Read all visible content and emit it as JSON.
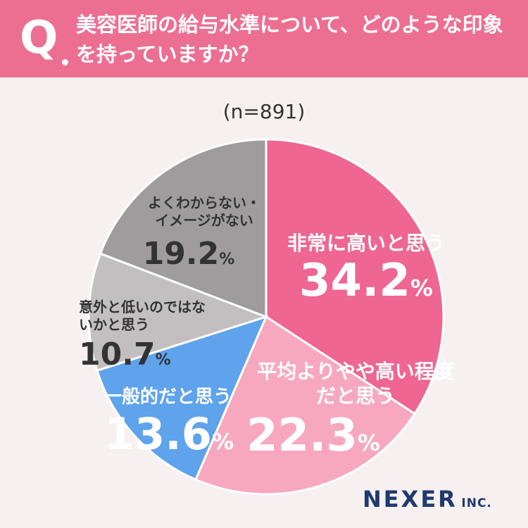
{
  "header": {
    "q_label": "Q",
    "question": "美容医師の給与水準について、どのような印象を持っていますか？"
  },
  "sample_label": "(n=891)",
  "brand": {
    "name": "NEXER",
    "suffix": "INC."
  },
  "chart_data": {
    "type": "pie",
    "title": "美容医師の給与水準について、どのような印象を持っていますか？",
    "n": 891,
    "unit": "%",
    "slices": [
      {
        "label": "非常に高いと思う",
        "value": 34.2,
        "color": "#ee6691"
      },
      {
        "label": "平均よりやや高い程度だと思う",
        "value": 22.3,
        "color": "#f7a8bf"
      },
      {
        "label": "一般的だと思う",
        "value": 13.6,
        "color": "#5ea3ec"
      },
      {
        "label": "意外と低いのではないかと思う",
        "value": 10.7,
        "color": "#c3bfc0"
      },
      {
        "label": "よくわからない・イメージがない",
        "value": 19.2,
        "color": "#a09c9d"
      }
    ]
  }
}
